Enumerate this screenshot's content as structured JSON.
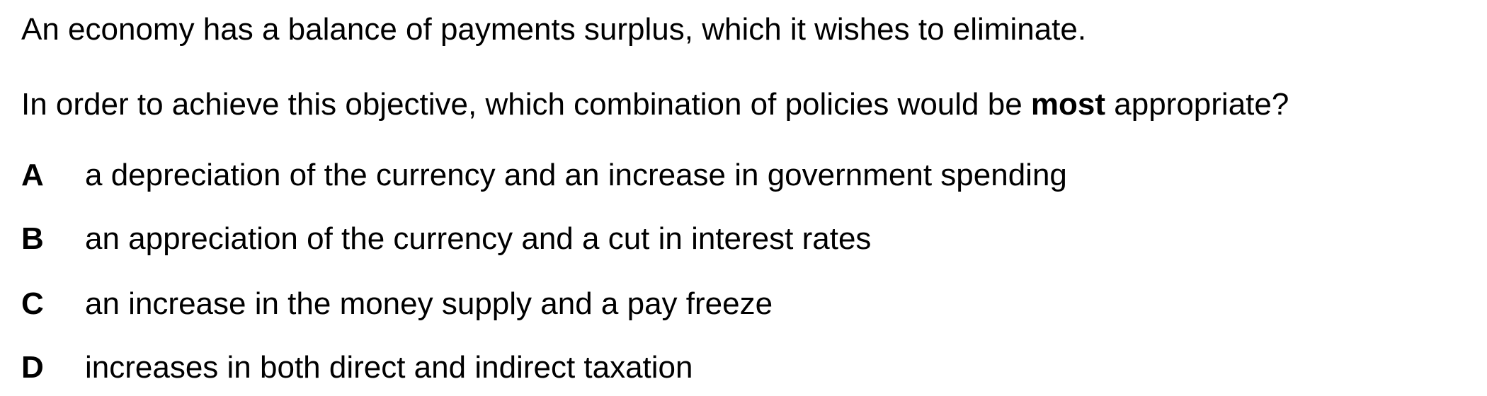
{
  "question": {
    "stem": "An economy has a balance of payments surplus, which it wishes to eliminate.",
    "prompt_before": "In order to achieve this objective, which combination of policies would be ",
    "prompt_emphasis": "most",
    "prompt_after": " appropriate?"
  },
  "options": [
    {
      "letter": "A",
      "text": "a depreciation of the currency and an increase in government spending"
    },
    {
      "letter": "B",
      "text": "an appreciation of the currency and a cut in interest rates"
    },
    {
      "letter": "C",
      "text": "an increase in the money supply and a pay freeze"
    },
    {
      "letter": "D",
      "text": "increases in both direct and indirect taxation"
    }
  ]
}
